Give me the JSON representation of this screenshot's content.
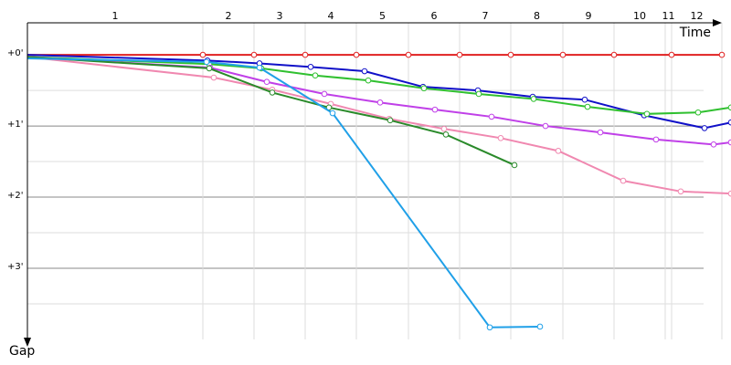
{
  "chart_data": {
    "type": "line",
    "x_label": "Time",
    "y_label": "Gap",
    "xlim": [
      0,
      770
    ],
    "ylim": [
      -0.45,
      4.0
    ],
    "yticks": [
      {
        "value": 0,
        "label": "+0'"
      },
      {
        "value": 1,
        "label": "+1'"
      },
      {
        "value": 2,
        "label": "+2'"
      },
      {
        "value": 3,
        "label": "+3'"
      }
    ],
    "minor_yticks": [
      0.5,
      1.5,
      2.5,
      3.5
    ],
    "grid": true,
    "laps": [
      "1",
      "2",
      "3",
      "4",
      "5",
      "6",
      "7",
      "8",
      "9",
      "10",
      "11",
      "12"
    ],
    "lap_ends": [
      192,
      248,
      304,
      360,
      417,
      473,
      529,
      586,
      642,
      698,
      705,
      760
    ],
    "series": [
      {
        "color": "#e02020",
        "x": [
          0,
          192,
          248,
          304,
          360,
          417,
          473,
          529,
          586,
          642,
          705,
          760
        ],
        "values": [
          0,
          0,
          0,
          0,
          0,
          0,
          0,
          0,
          0,
          0,
          0,
          0
        ]
      },
      {
        "color": "#1010c8",
        "x": [
          0,
          197,
          254,
          310,
          369,
          433,
          493,
          553,
          610,
          675,
          741,
          770
        ],
        "values": [
          0,
          0.08,
          0.12,
          0.17,
          0.23,
          0.45,
          0.5,
          0.59,
          0.63,
          0.85,
          1.03,
          0.95
        ]
      },
      {
        "color": "#30c030",
        "x": [
          0,
          199,
          256,
          315,
          373,
          434,
          494,
          554,
          613,
          678,
          734,
          770
        ],
        "values": [
          0.03,
          0.13,
          0.19,
          0.29,
          0.36,
          0.47,
          0.55,
          0.62,
          0.73,
          0.83,
          0.81,
          0.74
        ]
      },
      {
        "color": "#c040e8",
        "x": [
          0,
          200,
          262,
          325,
          386,
          446,
          508,
          567,
          627,
          688,
          751,
          770
        ],
        "values": [
          0.03,
          0.18,
          0.38,
          0.55,
          0.67,
          0.77,
          0.87,
          1.0,
          1.09,
          1.19,
          1.26,
          1.23
        ]
      },
      {
        "color": "#f088b0",
        "x": [
          0,
          204,
          268,
          332,
          396,
          456,
          518,
          581,
          652,
          715,
          770
        ],
        "values": [
          0.03,
          0.32,
          0.49,
          0.69,
          0.9,
          1.04,
          1.17,
          1.35,
          1.77,
          1.92,
          1.95
        ]
      },
      {
        "color": "#2a8a2a",
        "x": [
          0,
          199,
          268,
          330,
          397,
          458,
          533
        ],
        "values": [
          0.03,
          0.19,
          0.53,
          0.74,
          0.92,
          1.12,
          1.55
        ]
      },
      {
        "color": "#20a0e8",
        "x": [
          0,
          196,
          254,
          334,
          506,
          561
        ],
        "values": [
          0.05,
          0.1,
          0.18,
          0.82,
          3.83,
          3.82
        ]
      }
    ]
  }
}
